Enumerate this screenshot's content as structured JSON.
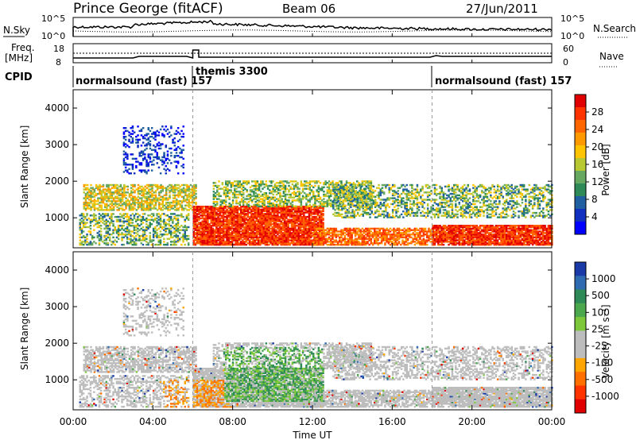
{
  "header": {
    "station": "Prince George (fitACF)",
    "beam": "Beam 06",
    "date": "27/Jun/2011"
  },
  "top_panels": {
    "nsky_label": "N.Sky",
    "nsearch_label": "N.Search",
    "freq_label_1": "Freq.",
    "freq_label_2": "[MHz]",
    "nave_label": "Nave",
    "cpid_label": "CPID",
    "noise_left_ticks": [
      "10^5",
      "10^0"
    ],
    "noise_right_ticks": [
      "10^5",
      "10^0"
    ],
    "freq_ticks": [
      "18",
      "8"
    ],
    "nave_ticks": [
      "60",
      "0"
    ],
    "cpid_segments": [
      {
        "label": "normalsound (fast) 157",
        "start_hour": 0
      },
      {
        "label": "themis 3300",
        "start_hour": 6
      },
      {
        "label": "normalsound (fast) 157",
        "start_hour": 18
      }
    ]
  },
  "colorbars": {
    "power": {
      "title": "Power [dB]",
      "ticks": [
        "28",
        "24",
        "20",
        "16",
        "12",
        "8",
        "4"
      ],
      "colors": [
        "#e00000",
        "#ff3300",
        "#ff6600",
        "#ff9900",
        "#ffc400",
        "#b8c830",
        "#66a860",
        "#2e8b57",
        "#2060a0",
        "#1030c0",
        "#0000ff"
      ]
    },
    "velocity": {
      "title": "Velocity [m s⁻¹]",
      "ticks": [
        "1000",
        "500",
        "100",
        "25",
        "-25",
        "-100",
        "-500",
        "-1000"
      ],
      "colors": [
        "#1a3aa8",
        "#2f6bb0",
        "#2e8b57",
        "#4ca84c",
        "#7cc83a",
        "#bdbdbd",
        "#bdbdbd",
        "#ffa500",
        "#ff7000",
        "#ff3300",
        "#e00000"
      ]
    }
  },
  "chart_data": [
    {
      "type": "heatmap",
      "name": "power",
      "ylabel": "Slant Range [km]",
      "ylim": [
        180,
        4500
      ],
      "yticks": [
        "4000",
        "3000",
        "2000",
        "1000"
      ],
      "xlim": [
        0,
        24
      ],
      "xticks": [
        "00:00",
        "04:00",
        "08:00",
        "12:00",
        "16:00",
        "20:00",
        "00:00"
      ],
      "xlabel": "Time UT"
    },
    {
      "type": "heatmap",
      "name": "velocity",
      "ylabel": "Slant Range [km]",
      "ylim": [
        180,
        4500
      ],
      "yticks": [
        "4000",
        "3000",
        "2000",
        "1000"
      ],
      "xlim": [
        0,
        24
      ],
      "xticks": [
        "00:00",
        "04:00",
        "08:00",
        "12:00",
        "16:00",
        "20:00",
        "00:00"
      ],
      "xlabel": "Time UT"
    }
  ]
}
